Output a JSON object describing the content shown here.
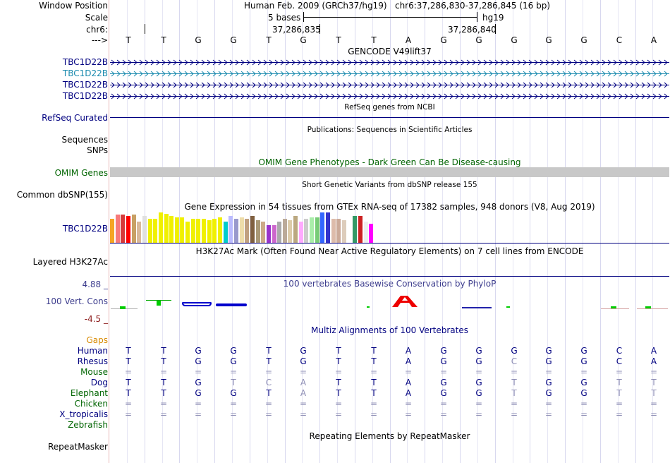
{
  "labels": {
    "window_position": "Window Position",
    "scale": "Scale",
    "chrom": "chr6:",
    "strand": "--->",
    "refseq": "RefSeq Curated",
    "sequences": "Sequences",
    "snps": "SNPs",
    "omim": "OMIM Genes",
    "dbsnp": "Common dbSNP(155)",
    "gtex_gene": "TBC1D22B",
    "h3k27ac": "Layered H3K27Ac",
    "phylo_max": "4.88 _",
    "phylo_label": "100 Vert. Cons",
    "phylo_min": "-4.5 _",
    "gaps": "Gaps",
    "repeatmasker": "RepeatMasker"
  },
  "header": {
    "assembly": "Human Feb. 2009 (GRCh37/hg19)",
    "position": "chr6:37,286,830-37,286,845 (16 bp)",
    "scale_text": "5 bases",
    "scale_db": "hg19",
    "coord1": "37,286,835",
    "coord2": "37,286,840"
  },
  "sequence": [
    "T",
    "T",
    "G",
    "G",
    "T",
    "G",
    "T",
    "T",
    "A",
    "G",
    "G",
    "G",
    "G",
    "G",
    "C",
    "A"
  ],
  "gene_tracks": [
    {
      "label": "TBC1D22B",
      "color": "#000080"
    },
    {
      "label": "TBC1D22B",
      "color": "#1a8aae"
    },
    {
      "label": "TBC1D22B",
      "color": "#000080"
    },
    {
      "label": "TBC1D22B",
      "color": "#000080"
    }
  ],
  "track_titles": {
    "gencode": "GENCODE V49lift37",
    "refseq": "RefSeq genes from NCBI",
    "publications": "Publications: Sequences in Scientific Articles",
    "omim": "OMIM Gene Phenotypes - Dark Green Can Be Disease-causing",
    "dbsnp": "Short Genetic Variants from dbSNP release 155",
    "gtex": "Gene Expression in 54 tissues from GTEx RNA-seq of 17382 samples, 948 donors (V8, Aug 2019)",
    "h3k27ac": "H3K27Ac Mark (Often Found Near Active Regulatory Elements) on 7 cell lines from ENCODE",
    "phylop": "100 vertebrates Basewise Conservation by PhyloP",
    "multiz": "Multiz Alignments of 100 Vertebrates",
    "repeatmasker": "Repeating Elements by RepeatMasker"
  },
  "gtex_bars": [
    {
      "h": 0.79,
      "c": "#f5a623"
    },
    {
      "h": 0.92,
      "c": "#f77a7a"
    },
    {
      "h": 0.92,
      "c": "#d53a3a"
    },
    {
      "h": 0.88,
      "c": "#ff0000"
    },
    {
      "h": 0.92,
      "c": "#c8a064"
    },
    {
      "h": 0.7,
      "c": "#d9b99b"
    },
    {
      "h": 0.88,
      "c": "#e0e0e0"
    },
    {
      "h": 0.79,
      "c": "#f0f000"
    },
    {
      "h": 0.79,
      "c": "#f0f000"
    },
    {
      "h": 1.0,
      "c": "#f0f000"
    },
    {
      "h": 0.96,
      "c": "#f0f000"
    },
    {
      "h": 0.88,
      "c": "#f0f000"
    },
    {
      "h": 0.83,
      "c": "#f0f000"
    },
    {
      "h": 0.83,
      "c": "#f0f000"
    },
    {
      "h": 0.7,
      "c": "#f0f000"
    },
    {
      "h": 0.79,
      "c": "#f0f000"
    },
    {
      "h": 0.79,
      "c": "#f0f000"
    },
    {
      "h": 0.79,
      "c": "#f0f000"
    },
    {
      "h": 0.75,
      "c": "#f0f000"
    },
    {
      "h": 0.79,
      "c": "#f0f000"
    },
    {
      "h": 0.83,
      "c": "#f0f000"
    },
    {
      "h": 0.7,
      "c": "#00cccc"
    },
    {
      "h": 0.88,
      "c": "#bbbbff"
    },
    {
      "h": 0.79,
      "c": "#9999cc"
    },
    {
      "h": 0.83,
      "c": "#eeddaa"
    },
    {
      "h": 0.79,
      "c": "#c0a080"
    },
    {
      "h": 0.88,
      "c": "#806040"
    },
    {
      "h": 0.75,
      "c": "#aa9977"
    },
    {
      "h": 0.7,
      "c": "#ccaa88"
    },
    {
      "h": 0.58,
      "c": "#9933cc"
    },
    {
      "h": 0.58,
      "c": "#cc66cc"
    },
    {
      "h": 0.7,
      "c": "#aaaaaa"
    },
    {
      "h": 0.79,
      "c": "#bbaa99"
    },
    {
      "h": 0.75,
      "c": "#ddccaa"
    },
    {
      "h": 0.88,
      "c": "#bba880"
    },
    {
      "h": 0.7,
      "c": "#ffaaff"
    },
    {
      "h": 0.79,
      "c": "#cccccc"
    },
    {
      "h": 0.83,
      "c": "#aaeeaa"
    },
    {
      "h": 0.83,
      "c": "#77cc77"
    },
    {
      "h": 1.0,
      "c": "#3366ff"
    },
    {
      "h": 1.0,
      "c": "#3333cc"
    },
    {
      "h": 0.79,
      "c": "#ddbbaa"
    },
    {
      "h": 0.79,
      "c": "#ccaa99"
    },
    {
      "h": 0.75,
      "c": "#ddccbb"
    },
    {
      "h": 0.7,
      "c": "#ffffff"
    },
    {
      "h": 0.88,
      "c": "#339966"
    },
    {
      "h": 0.88,
      "c": "#cc2222"
    },
    {
      "h": 0.7,
      "c": "#eeeeee"
    },
    {
      "h": 0.62,
      "c": "#ff00ff"
    }
  ],
  "multiz": [
    {
      "species": "Human",
      "color": "#000080",
      "seq": [
        "T",
        "T",
        "G",
        "G",
        "T",
        "G",
        "T",
        "T",
        "A",
        "G",
        "G",
        "G",
        "G",
        "G",
        "C",
        "A"
      ]
    },
    {
      "species": "Rhesus",
      "color": "#000080",
      "seq": [
        "T",
        "T",
        "G",
        "G",
        "T",
        "G",
        "T",
        "T",
        "A",
        "G",
        "G",
        "C",
        "G",
        "G",
        "C",
        "A"
      ]
    },
    {
      "species": "Mouse",
      "color": "#006400",
      "seq": [
        "=",
        "=",
        "=",
        "=",
        "=",
        "=",
        "=",
        "=",
        "=",
        "=",
        "=",
        "=",
        "=",
        "=",
        "=",
        "="
      ]
    },
    {
      "species": "Dog",
      "color": "#000080",
      "seq": [
        "T",
        "T",
        "G",
        "T",
        "C",
        "A",
        "T",
        "T",
        "A",
        "G",
        "G",
        "T",
        "G",
        "G",
        "T",
        "T"
      ]
    },
    {
      "species": "Elephant",
      "color": "#006400",
      "seq": [
        "T",
        "T",
        "G",
        "G",
        "T",
        "A",
        "T",
        "T",
        "A",
        "G",
        "G",
        "T",
        "G",
        "G",
        "T",
        "T"
      ]
    },
    {
      "species": "Chicken",
      "color": "#006400",
      "seq": [
        "=",
        "=",
        "=",
        "=",
        "=",
        "=",
        "=",
        "=",
        "=",
        "=",
        "=",
        "=",
        "=",
        "=",
        "=",
        "="
      ]
    },
    {
      "species": "X_tropicalis",
      "color": "#000080",
      "seq": [
        "=",
        "=",
        "=",
        "=",
        "=",
        "=",
        "=",
        "=",
        "=",
        "=",
        "=",
        "=",
        "=",
        "=",
        "=",
        "="
      ]
    },
    {
      "species": "Zebrafish",
      "color": "#006400",
      "seq": [
        "",
        "",
        "",
        "",
        "",
        "",
        "",
        "",
        "",
        "",
        "",
        "",
        "",
        "",
        "",
        ""
      ]
    }
  ],
  "colors": {
    "label_text": "#000080",
    "omim_label": "#006400",
    "gaps_label": "#d88a00",
    "phylo_text": "#3e3e8e",
    "phylo_min": "#8b1a1a",
    "omim_bar": "#c8c8c8",
    "dim": "#8e8eb5"
  }
}
